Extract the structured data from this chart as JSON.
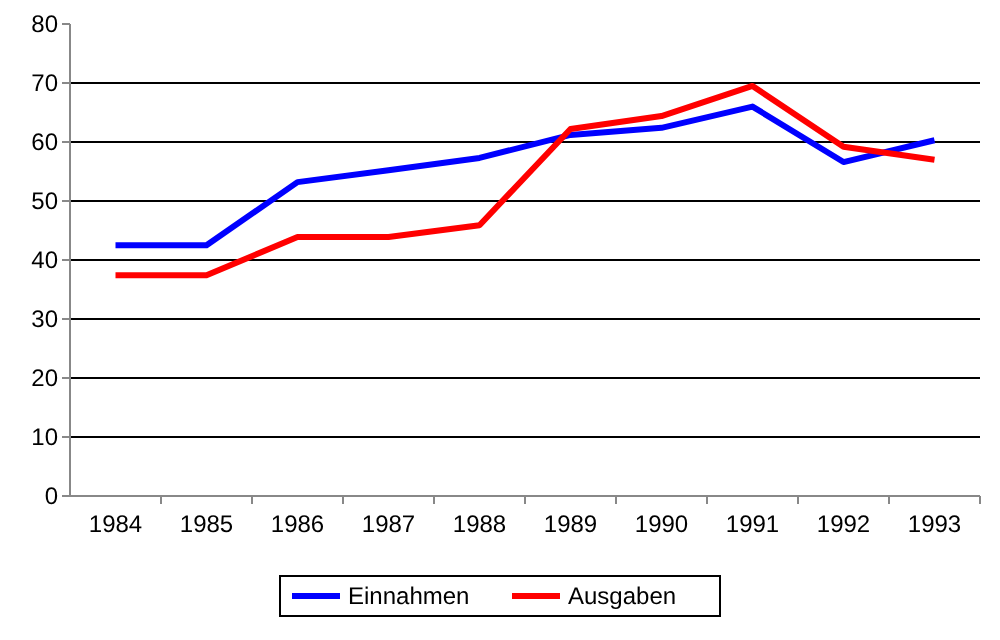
{
  "chart_data": {
    "type": "line",
    "categories": [
      "1984",
      "1985",
      "1986",
      "1987",
      "1988",
      "1989",
      "1990",
      "1991",
      "1992",
      "1993"
    ],
    "series": [
      {
        "name": "Einnahmen",
        "color": "#0000ff",
        "values": [
          42.5,
          42.5,
          53.2,
          55.2,
          57.3,
          61.2,
          62.4,
          66,
          56.6,
          60.3
        ]
      },
      {
        "name": "Ausgaben",
        "color": "#ff0000",
        "values": [
          37.4,
          37.4,
          43.9,
          43.9,
          45.9,
          62.2,
          64.4,
          69.5,
          59.2,
          57
        ]
      }
    ],
    "ylim": [
      0,
      80
    ],
    "yticks": [
      0,
      10,
      20,
      30,
      40,
      50,
      60,
      70,
      80
    ],
    "grid": "y",
    "legend": "bottom",
    "marker": "none",
    "line_style": "solid"
  }
}
